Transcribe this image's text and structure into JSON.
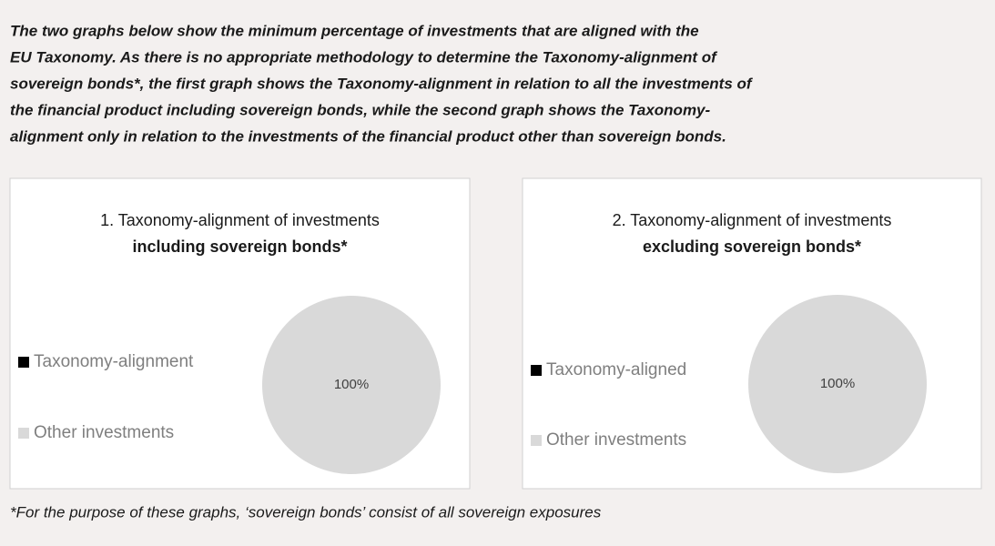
{
  "intro": [
    "The two graphs below show the minimum percentage of investments that are aligned with the",
    "EU Taxonomy. As there is no appropriate methodology to determine the Taxonomy-alignment of",
    "sovereign bonds*, the first graph shows the Taxonomy-alignment in relation to all the investments of",
    "the financial product including sovereign bonds, while the second graph shows the Taxonomy-",
    "alignment only in relation to the investments of the financial product other than sovereign bonds."
  ],
  "chart_data": [
    {
      "type": "pie",
      "title": "1. Taxonomy-alignment of investments",
      "subtitle": "including sovereign bonds*",
      "categories": [
        "Taxonomy-alignment",
        "Other investments"
      ],
      "values": [
        0,
        100
      ],
      "value_labels": [
        null,
        "100%"
      ],
      "colors": [
        "#000000",
        "#d9d9d9"
      ],
      "legend": "left"
    },
    {
      "type": "pie",
      "title": "2. Taxonomy-alignment of investments",
      "subtitle": "excluding sovereign bonds*",
      "categories": [
        "Taxonomy-aligned",
        "Other investments"
      ],
      "values": [
        0,
        100
      ],
      "value_labels": [
        null,
        "100%"
      ],
      "colors": [
        "#000000",
        "#d9d9d9"
      ],
      "legend": "left"
    }
  ],
  "footnote": "*For the purpose of these graphs, ‘sovereign bonds’ consist of all sovereign exposures"
}
